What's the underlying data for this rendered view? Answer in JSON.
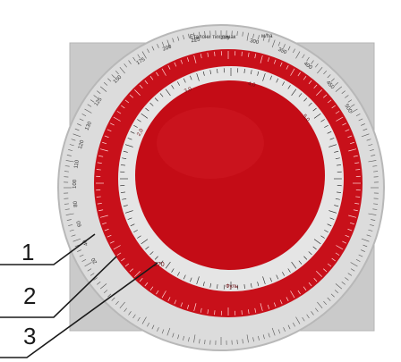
{
  "photo": {
    "header_text": "Еталони тих ознак",
    "header_unit": "м/ha",
    "outer_scale_top": [
      "125",
      "150",
      "175",
      "200",
      "225",
      "275",
      "300",
      "350",
      "400",
      "450",
      "500"
    ],
    "inner_red_scale": [
      "2,0",
      "3,0",
      "4,0",
      "5,0"
    ],
    "inner_bottom_label": "Фуль",
    "inner_bottom_value": "270",
    "side_scale_left": [
      "20",
      "40",
      "60",
      "80",
      "100",
      "110",
      "120",
      "130"
    ]
  },
  "callouts": [
    {
      "id": "1",
      "label": "1"
    },
    {
      "id": "2",
      "label": "2"
    },
    {
      "id": "3",
      "label": "3"
    }
  ],
  "colors": {
    "background": "#ffffff",
    "outer_disc": "#dedede",
    "square_plate": "#c9c9c9",
    "red": "#c8101a",
    "dark_red": "#9e0a12",
    "inner_ring": "#e6e6e6",
    "leader": "#1a1a1a"
  }
}
